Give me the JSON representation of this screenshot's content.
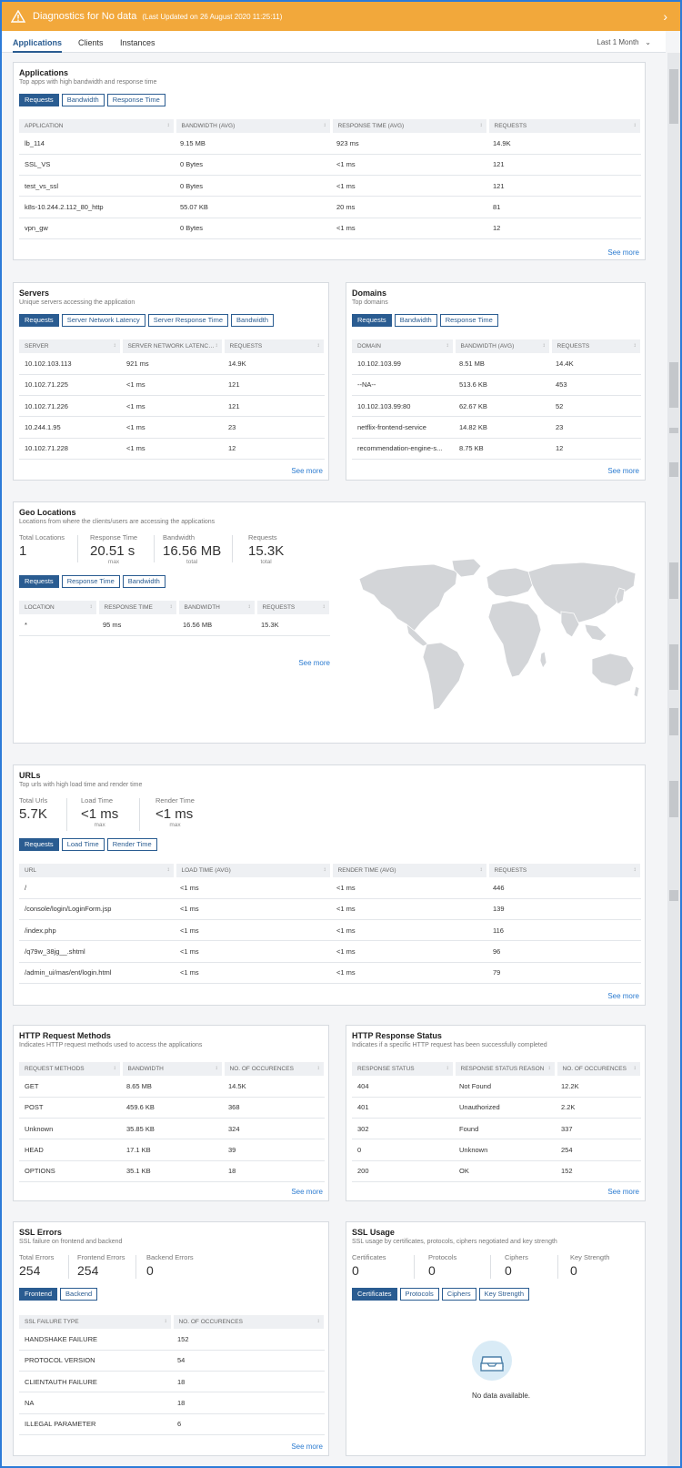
{
  "banner": {
    "title": "Diagnostics for No data",
    "updated": "(Last Updated on 26 August 2020 11:25:11)"
  },
  "tabs": [
    {
      "label": "Applications"
    },
    {
      "label": "Clients"
    },
    {
      "label": "Instances"
    }
  ],
  "time_range": "Last 1 Month",
  "see_more": "See more",
  "applications": {
    "title": "Applications",
    "subtitle": "Top apps with high bandwidth and response time",
    "buttons": [
      "Requests",
      "Bandwidth",
      "Response Time"
    ],
    "columns": [
      "APPLICATION",
      "BANDWIDTH (AVG)",
      "RESPONSE TIME (AVG)",
      "REQUESTS"
    ],
    "rows": [
      [
        "lb_114",
        "9.15 MB",
        "923 ms",
        "14.9K"
      ],
      [
        "SSL_VS",
        "0 Bytes",
        "<1 ms",
        "121"
      ],
      [
        "test_vs_ssl",
        "0 Bytes",
        "<1 ms",
        "121"
      ],
      [
        "k8s-10.244.2.112_80_http",
        "55.07 KB",
        "20 ms",
        "81"
      ],
      [
        "vpn_gw",
        "0 Bytes",
        "<1 ms",
        "12"
      ]
    ]
  },
  "servers": {
    "title": "Servers",
    "subtitle": "Unique servers accessing the application",
    "buttons": [
      "Requests",
      "Server Network Latency",
      "Server Response Time",
      "Bandwidth"
    ],
    "columns": [
      "SERVER",
      "SERVER NETWORK LATENCY (...",
      "REQUESTS"
    ],
    "rows": [
      [
        "10.102.103.113",
        "921 ms",
        "14.9K"
      ],
      [
        "10.102.71.225",
        "<1 ms",
        "121"
      ],
      [
        "10.102.71.226",
        "<1 ms",
        "121"
      ],
      [
        "10.244.1.95",
        "<1 ms",
        "23"
      ],
      [
        "10.102.71.228",
        "<1 ms",
        "12"
      ]
    ]
  },
  "domains": {
    "title": "Domains",
    "subtitle": "Top domains",
    "buttons": [
      "Requests",
      "Bandwidth",
      "Response Time"
    ],
    "columns": [
      "DOMAIN",
      "BANDWIDTH (AVG)",
      "REQUESTS"
    ],
    "rows": [
      [
        "10.102.103.99",
        "8.51 MB",
        "14.4K"
      ],
      [
        "--NA--",
        "513.6 KB",
        "453"
      ],
      [
        "10.102.103.99:80",
        "62.67 KB",
        "52"
      ],
      [
        "netflix-frontend-service",
        "14.82 KB",
        "23"
      ],
      [
        "recommendation-engine-s...",
        "8.75 KB",
        "12"
      ]
    ]
  },
  "geo": {
    "title": "Geo Locations",
    "subtitle": "Locations from where the clients/users are accessing the applications",
    "stats": [
      {
        "label": "Total Locations",
        "value": "1",
        "note": ""
      },
      {
        "label": "Response Time",
        "value": "20.51 s",
        "note": "max"
      },
      {
        "label": "Bandwidth",
        "value": "16.56 MB",
        "note": "total"
      },
      {
        "label": "Requests",
        "value": "15.3K",
        "note": "total"
      }
    ],
    "buttons": [
      "Requests",
      "Response Time",
      "Bandwidth"
    ],
    "columns": [
      "LOCATION",
      "RESPONSE TIME",
      "BANDWIDTH",
      "REQUESTS"
    ],
    "rows": [
      [
        "*",
        "95 ms",
        "16.56 MB",
        "15.3K"
      ]
    ]
  },
  "urls": {
    "title": "URLs",
    "subtitle": "Top urls with high load time and render time",
    "stats": [
      {
        "label": "Total Urls",
        "value": "5.7K",
        "note": ""
      },
      {
        "label": "Load Time",
        "value": "<1 ms",
        "note": "max"
      },
      {
        "label": "Render Time",
        "value": "<1 ms",
        "note": "max"
      }
    ],
    "buttons": [
      "Requests",
      "Load Time",
      "Render Time"
    ],
    "columns": [
      "URL",
      "LOAD TIME (AVG)",
      "RENDER TIME (AVG)",
      "REQUESTS"
    ],
    "rows": [
      [
        "/",
        "<1 ms",
        "<1 ms",
        "446"
      ],
      [
        "/console/login/LoginForm.jsp",
        "<1 ms",
        "<1 ms",
        "139"
      ],
      [
        "/index.php",
        "<1 ms",
        "<1 ms",
        "116"
      ],
      [
        "/q79w_38jg__.shtml",
        "<1 ms",
        "<1 ms",
        "96"
      ],
      [
        "/admin_ui/mas/ent/login.html",
        "<1 ms",
        "<1 ms",
        "79"
      ]
    ]
  },
  "http_methods": {
    "title": "HTTP Request Methods",
    "subtitle": "Indicates HTTP request methods used to access the applications",
    "columns": [
      "REQUEST METHODS",
      "BANDWIDTH",
      "NO. OF OCCURENCES"
    ],
    "rows": [
      [
        "GET",
        "8.65 MB",
        "14.5K"
      ],
      [
        "POST",
        "459.6 KB",
        "368"
      ],
      [
        "Unknown",
        "35.85 KB",
        "324"
      ],
      [
        "HEAD",
        "17.1 KB",
        "39"
      ],
      [
        "OPTIONS",
        "35.1 KB",
        "18"
      ]
    ]
  },
  "http_status": {
    "title": "HTTP Response Status",
    "subtitle": "Indicates if a specific HTTP request has been successfully completed",
    "columns": [
      "RESPONSE STATUS",
      "RESPONSE STATUS REASON",
      "NO. OF OCCURENCES"
    ],
    "rows": [
      [
        "404",
        "Not Found",
        "12.2K"
      ],
      [
        "401",
        "Unauthorized",
        "2.2K"
      ],
      [
        "302",
        "Found",
        "337"
      ],
      [
        "0",
        "Unknown",
        "254"
      ],
      [
        "200",
        "OK",
        "152"
      ]
    ]
  },
  "ssl_errors": {
    "title": "SSL Errors",
    "subtitle": "SSL failure on frontend and backend",
    "stats": [
      {
        "label": "Total Errors",
        "value": "254"
      },
      {
        "label": "Frontend Errors",
        "value": "254"
      },
      {
        "label": "Backend Errors",
        "value": "0"
      }
    ],
    "buttons": [
      "Frontend",
      "Backend"
    ],
    "columns": [
      "SSL FAILURE TYPE",
      "NO. OF OCCURENCES"
    ],
    "rows": [
      [
        "HANDSHAKE FAILURE",
        "152"
      ],
      [
        "PROTOCOL VERSION",
        "54"
      ],
      [
        "CLIENTAUTH FAILURE",
        "18"
      ],
      [
        "NA",
        "18"
      ],
      [
        "ILLEGAL PARAMETER",
        "6"
      ]
    ]
  },
  "ssl_usage": {
    "title": "SSL Usage",
    "subtitle": "SSL usage by certificates, protocols, ciphers negotiated and key strength",
    "stats": [
      {
        "label": "Certificates",
        "value": "0"
      },
      {
        "label": "Protocols",
        "value": "0"
      },
      {
        "label": "Ciphers",
        "value": "0"
      },
      {
        "label": "Key Strength",
        "value": "0"
      }
    ],
    "buttons": [
      "Certificates",
      "Protocols",
      "Ciphers",
      "Key Strength"
    ],
    "empty_text": "No data available."
  }
}
